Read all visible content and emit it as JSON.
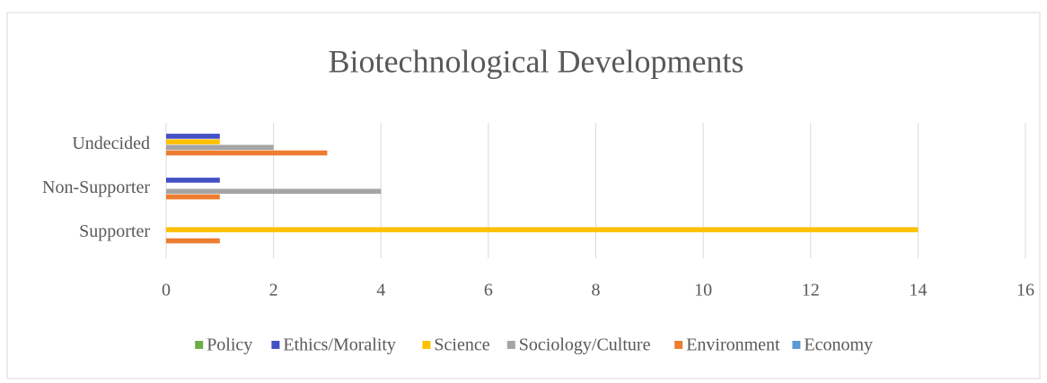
{
  "chart_data": {
    "type": "bar",
    "orientation": "horizontal",
    "title": "Biotechnological Developments",
    "categories": [
      "Supporter",
      "Non-Supporter",
      "Undecided"
    ],
    "series": [
      {
        "name": "Policy",
        "color": "#70ad47",
        "values": [
          0,
          0,
          0
        ]
      },
      {
        "name": "Ethics/Morality",
        "color": "#4451c4",
        "values": [
          0,
          1,
          1
        ]
      },
      {
        "name": "Science",
        "color": "#ffc000",
        "values": [
          14,
          0,
          1
        ]
      },
      {
        "name": "Sociology/Culture",
        "color": "#a5a5a5",
        "values": [
          0,
          4,
          2
        ]
      },
      {
        "name": "Environment",
        "color": "#ed7d31",
        "values": [
          1,
          1,
          3
        ]
      },
      {
        "name": "Economy",
        "color": "#5b9bd5",
        "values": [
          0,
          0,
          0
        ]
      }
    ],
    "xlim": [
      0,
      16
    ],
    "xticks": [
      0,
      2,
      4,
      6,
      8,
      10,
      12,
      14,
      16
    ],
    "grid": true,
    "legend": "bottom"
  }
}
